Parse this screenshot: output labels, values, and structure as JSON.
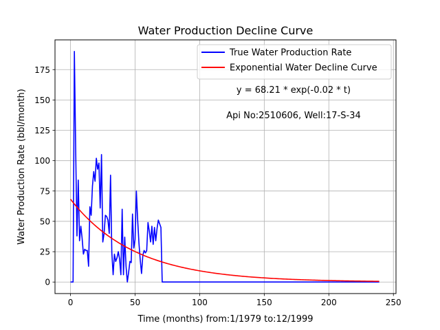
{
  "chart_data": {
    "type": "line",
    "title": "Water Production Decline Curve",
    "xlabel": "Time (months) from:1/1979 to:12/1999",
    "ylabel": "Water Production Rate (bbl/month)",
    "xlim": [
      -12,
      252
    ],
    "ylim": [
      -9.5,
      199.5
    ],
    "xticks": [
      0,
      50,
      100,
      150,
      200,
      250
    ],
    "yticks": [
      0,
      25,
      50,
      75,
      100,
      125,
      150,
      175
    ],
    "grid": true,
    "legend_position": "top-right",
    "annotations": [
      "y = 68.21 * exp(-0.02 * t)",
      "Api No:2510606, Well:17-S-34"
    ],
    "series": [
      {
        "name": "True Water Production Rate",
        "color": "#0000ff",
        "x": [
          0,
          1,
          2,
          3,
          4,
          5,
          6,
          7,
          8,
          9,
          10,
          11,
          12,
          13,
          14,
          15,
          16,
          17,
          18,
          19,
          20,
          21,
          22,
          23,
          24,
          25,
          26,
          27,
          28,
          29,
          30,
          31,
          32,
          33,
          34,
          35,
          36,
          37,
          38,
          39,
          40,
          41,
          42,
          43,
          44,
          45,
          46,
          47,
          48,
          49,
          50,
          51,
          52,
          53,
          54,
          55,
          56,
          57,
          58,
          59,
          60,
          61,
          62,
          63,
          64,
          65,
          66,
          67,
          68,
          69,
          70,
          71,
          72,
          73,
          74,
          239
        ],
        "y": [
          0,
          0,
          0,
          190,
          110,
          38,
          84,
          34,
          46,
          36,
          23,
          27,
          26,
          26,
          13,
          62,
          55,
          79,
          91,
          83,
          102,
          93,
          98,
          61,
          105,
          33,
          40,
          55,
          54,
          51,
          40,
          88,
          24,
          6,
          23,
          17,
          20,
          25,
          19,
          6,
          60,
          6,
          37,
          13,
          0,
          8,
          17,
          16,
          56,
          28,
          35,
          75,
          51,
          32,
          18,
          7,
          22,
          26,
          24,
          26,
          49,
          42,
          33,
          46,
          31,
          45,
          34,
          44,
          51,
          48,
          45,
          0,
          0,
          0,
          0,
          0
        ]
      },
      {
        "name": "Exponential Water Decline Curve",
        "color": "#ff0000",
        "model": {
          "a": 68.21,
          "b": 0.02,
          "t_start": 0,
          "t_end": 239
        }
      }
    ]
  }
}
